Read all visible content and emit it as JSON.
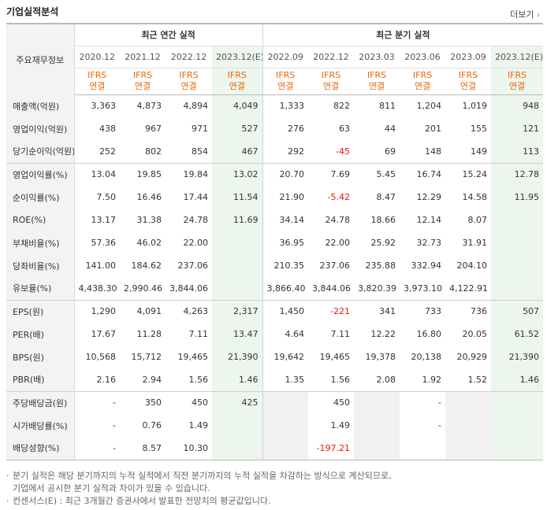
{
  "header": {
    "title": "기업실적분석",
    "more_label": "더보기",
    "more_arrow": "›"
  },
  "columns": {
    "corner_label": "주요재무정보",
    "annual_group": "최근 연간 실적",
    "quarter_group": "최근 분기 실적",
    "periods": [
      "2020.12",
      "2021.12",
      "2022.12",
      "2023.12(E)",
      "2022.09",
      "2022.12",
      "2023.03",
      "2023.06",
      "2023.09",
      "2023.12(E)"
    ],
    "acct_line1": "IFRS",
    "acct_line2": "연결"
  },
  "rows": [
    {
      "label": "매출액(억원)",
      "values": [
        "3,363",
        "4,873",
        "4,894",
        "4,049",
        "1,333",
        "822",
        "811",
        "1,204",
        "1,019",
        "948"
      ]
    },
    {
      "label": "영업이익(억원)",
      "values": [
        "438",
        "967",
        "971",
        "527",
        "276",
        "63",
        "44",
        "201",
        "155",
        "121"
      ]
    },
    {
      "label": "당기순이익(억원)",
      "values": [
        "252",
        "802",
        "854",
        "467",
        "292",
        "-45",
        "69",
        "148",
        "149",
        "113"
      ]
    },
    {
      "label": "영업이익률(%)",
      "values": [
        "13.04",
        "19.85",
        "19.84",
        "13.02",
        "20.70",
        "7.69",
        "5.45",
        "16.74",
        "15.24",
        "12.78"
      ]
    },
    {
      "label": "순이익률(%)",
      "values": [
        "7.50",
        "16.46",
        "17.44",
        "11.54",
        "21.90",
        "-5.42",
        "8.47",
        "12.29",
        "14.58",
        "11.95"
      ]
    },
    {
      "label": "ROE(%)",
      "values": [
        "13.17",
        "31.38",
        "24.78",
        "11.69",
        "34.14",
        "24.78",
        "18.66",
        "12.14",
        "8.07",
        ""
      ]
    },
    {
      "label": "부채비율(%)",
      "values": [
        "57.36",
        "46.02",
        "22.00",
        "",
        "36.95",
        "22.00",
        "25.92",
        "32.73",
        "31.91",
        ""
      ]
    },
    {
      "label": "당좌비율(%)",
      "values": [
        "141.00",
        "184.62",
        "237.06",
        "",
        "210.35",
        "237.06",
        "235.88",
        "332.94",
        "204.10",
        ""
      ]
    },
    {
      "label": "유보율(%)",
      "values": [
        "4,438.30",
        "2,990.46",
        "3,844.06",
        "",
        "3,866.40",
        "3,844.06",
        "3,820.39",
        "3,973.10",
        "4,122.91",
        ""
      ]
    },
    {
      "label": "EPS(원)",
      "values": [
        "1,290",
        "4,091",
        "4,263",
        "2,317",
        "1,450",
        "-221",
        "341",
        "733",
        "736",
        "507"
      ]
    },
    {
      "label": "PER(배)",
      "values": [
        "17.67",
        "11.28",
        "7.11",
        "13.47",
        "4.64",
        "7.11",
        "12.22",
        "16.80",
        "20.05",
        "61.52"
      ]
    },
    {
      "label": "BPS(원)",
      "values": [
        "10,568",
        "15,712",
        "19,465",
        "21,390",
        "19,642",
        "19,465",
        "19,378",
        "20,138",
        "20,929",
        "21,390"
      ]
    },
    {
      "label": "PBR(배)",
      "values": [
        "2.16",
        "2.94",
        "1.56",
        "1.46",
        "1.35",
        "1.56",
        "2.08",
        "1.92",
        "1.52",
        "1.46"
      ]
    },
    {
      "label": "주당배당금(원)",
      "values": [
        "-",
        "350",
        "450",
        "425",
        "",
        "450",
        "",
        "-",
        "",
        ""
      ]
    },
    {
      "label": "시가배당률(%)",
      "values": [
        "-",
        "0.76",
        "1.49",
        "",
        "",
        "1.49",
        "",
        "-",
        "",
        ""
      ]
    },
    {
      "label": "배당성향(%)",
      "values": [
        "-",
        "8.57",
        "10.30",
        "",
        "",
        "-197.21",
        "",
        "",
        "",
        ""
      ]
    }
  ],
  "notes": {
    "bullet": "·",
    "line1": "분기 실적은 해당 분기까지의 누적 실적에서 직전 분기까지의 누적 실적을 차감하는 방식으로 계산되므로,",
    "line2": "기업에서 공시한 분기 실적과 차이가 있을 수 있습니다.",
    "line3": "컨센서스(E) : 최근 3개월간 증권사에서 발표한 전망치의 평균값입니다."
  },
  "colors": {
    "negative": "#e8160c",
    "accounting": "#e8690b",
    "estimate_bg": "#ecf6ec"
  }
}
